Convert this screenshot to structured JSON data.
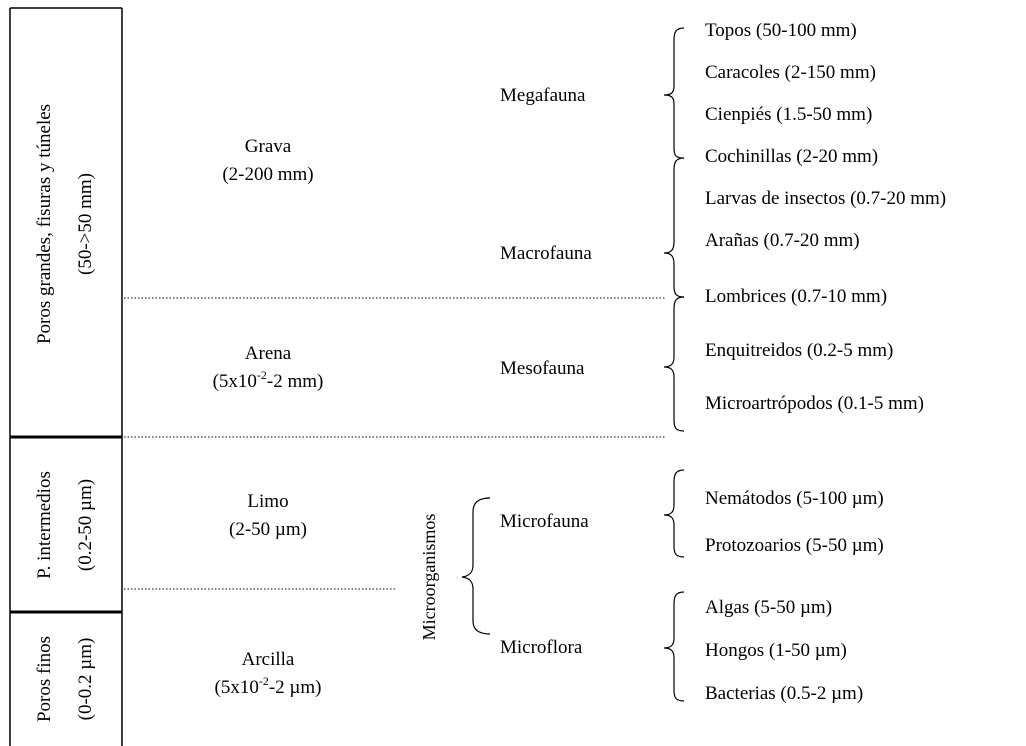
{
  "pore_sizes": [
    {
      "line1": "Poros grandes, fisuras y túneles",
      "line2": "(50->50 mm)"
    },
    {
      "line1": "P. intermedios",
      "line2": "(0.2-50 µm)"
    },
    {
      "line1": "Poros finos",
      "line2": "(0-0.2 µm)"
    }
  ],
  "particles": [
    {
      "name": "Grava",
      "size": "(2-200 mm)"
    },
    {
      "name": "Arena",
      "size_pre": "(5x10",
      "size_exp": "-2",
      "size_post": "-2 mm)"
    },
    {
      "name": "Limo",
      "size": "(2-50 µm)"
    },
    {
      "name": "Arcilla",
      "size_pre": "(5x10",
      "size_exp": "-2",
      "size_post": "-2 µm)"
    }
  ],
  "microorganisms_label": "Microorganismos",
  "groups": {
    "megafauna": "Megafauna",
    "macrofauna": "Macrofauna",
    "mesofauna": "Mesofauna",
    "microfauna": "Microfauna",
    "microflora": "Microflora"
  },
  "organisms": [
    "Topos (50-100 mm)",
    "Caracoles (2-150 mm)",
    "Cienpiés (1.5-50 mm)",
    "Cochinillas (2-20 mm)",
    "Larvas de insectos (0.7-20 mm)",
    "Arañas (0.7-20 mm)",
    "Lombrices (0.7-10 mm)",
    "Enquitreidos (0.2-5 mm)",
    "Microartrópodos (0.1-5 mm)",
    "Nemátodos (5-100 µm)",
    "Protozoarios (5-50 µm)",
    "Algas (5-50 µm)",
    "Hongos (1-50 µm)",
    "Bacterias (0.5-2 µm)"
  ]
}
